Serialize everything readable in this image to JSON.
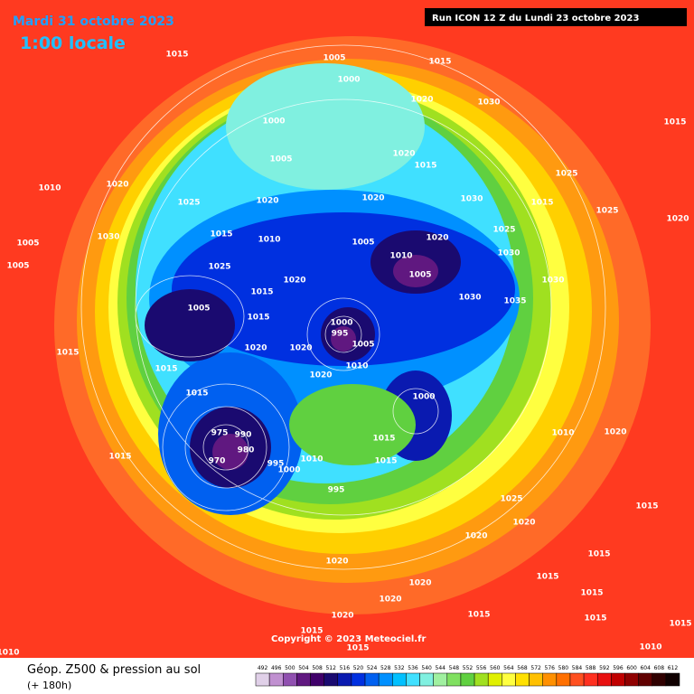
{
  "header": {
    "title": "Mardi 31 octobre 2023",
    "subtitle": "1:00 locale",
    "run": "Run ICON 12 Z du Lundi 23 octobre 2023"
  },
  "map": {
    "pressure_labels": [
      1015,
      1005,
      1015,
      1000,
      1020,
      1030,
      1000,
      1015,
      1005,
      1020,
      1015,
      1025,
      1010,
      1020,
      1025,
      1020,
      1020,
      1030,
      1015,
      1025,
      1020,
      1005,
      1030,
      1015,
      1010,
      1005,
      1020,
      1025,
      1005,
      1025,
      1020,
      1005,
      1010,
      1030,
      1015,
      1005,
      1000,
      995,
      1005,
      1030,
      1035,
      1030,
      1015,
      1020,
      1020,
      1015,
      1015,
      1010,
      1020,
      1000,
      1015,
      975,
      990,
      970,
      980,
      995,
      1010,
      1000,
      1015,
      995,
      1015,
      1015,
      1010,
      1020,
      1025,
      1020,
      1020,
      1015,
      1015,
      1020,
      1020,
      1020,
      1015,
      1015,
      1020,
      1015,
      1015,
      1015,
      1015,
      1010,
      1010,
      1015
    ]
  },
  "footer": {
    "copyright": "Copyright © 2023 Meteociel.fr",
    "field": "Géop. Z500 & pression au sol",
    "lead": "(+ 180h)"
  },
  "legend": {
    "levels": [
      492,
      496,
      500,
      504,
      508,
      512,
      516,
      520,
      524,
      528,
      532,
      536,
      540,
      544,
      548,
      552,
      556,
      560,
      564,
      568,
      572,
      576,
      580,
      584,
      588,
      592,
      596,
      600,
      604,
      608,
      612
    ],
    "colors": [
      "#e0d0e8",
      "#c090d0",
      "#9050b0",
      "#601880",
      "#40006a",
      "#1a0a70",
      "#0a1ab0",
      "#0030e0",
      "#0060f0",
      "#0090ff",
      "#00c0ff",
      "#40e0ff",
      "#80f0e0",
      "#a0f0a0",
      "#80e060",
      "#60d040",
      "#a0e020",
      "#e0f000",
      "#ffff40",
      "#ffe000",
      "#ffc000",
      "#ff9000",
      "#ff7000",
      "#ff5020",
      "#ff3020",
      "#e81010",
      "#c00000",
      "#900000",
      "#600000",
      "#300000",
      "#100000"
    ]
  }
}
